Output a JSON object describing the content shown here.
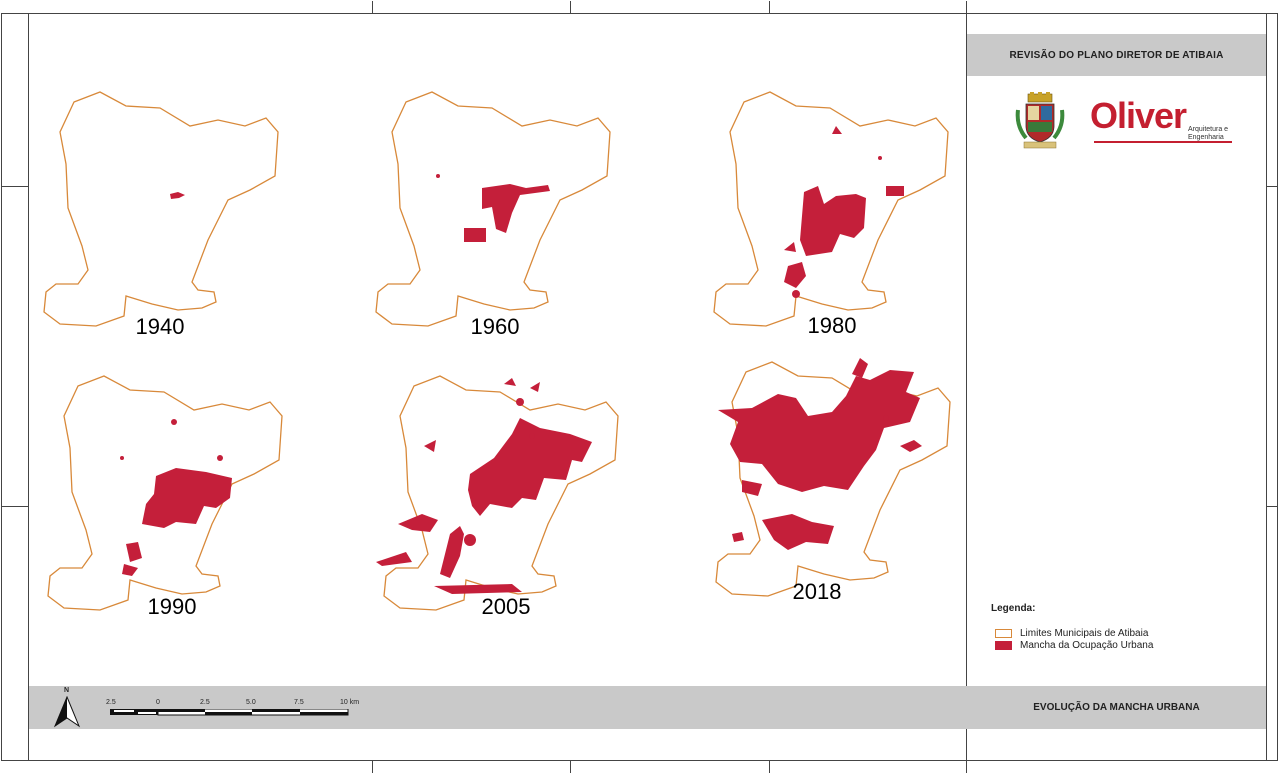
{
  "header": {
    "title": "REVISÃO DO PLANO DIRETOR DE ATIBAIA"
  },
  "footer": {
    "title": "EVOLUÇÃO DA MANCHA URBANA"
  },
  "logo": {
    "brand": "Oliver",
    "subtitle_line1": "Arquitetura e",
    "subtitle_line2": "Engenharia"
  },
  "maps": [
    {
      "year": "1940"
    },
    {
      "year": "1960"
    },
    {
      "year": "1980"
    },
    {
      "year": "1990"
    },
    {
      "year": "2005"
    },
    {
      "year": "2018"
    }
  ],
  "legend": {
    "title": "Legenda:",
    "items": [
      {
        "label": "Limites Municipais de Atibaia",
        "color": "#d8893a",
        "style": "outline"
      },
      {
        "label": "Mancha da Ocupação Urbana",
        "color": "#c41f3a",
        "style": "fill"
      }
    ]
  },
  "north_arrow": {
    "label": "N"
  },
  "scale_bar": {
    "labels": [
      "2.5",
      "0",
      "2.5",
      "5.0",
      "7.5",
      "10 km"
    ]
  },
  "colors": {
    "boundary": "#d8893a",
    "urban": "#c41f3a",
    "band": "#c9c9c9"
  }
}
